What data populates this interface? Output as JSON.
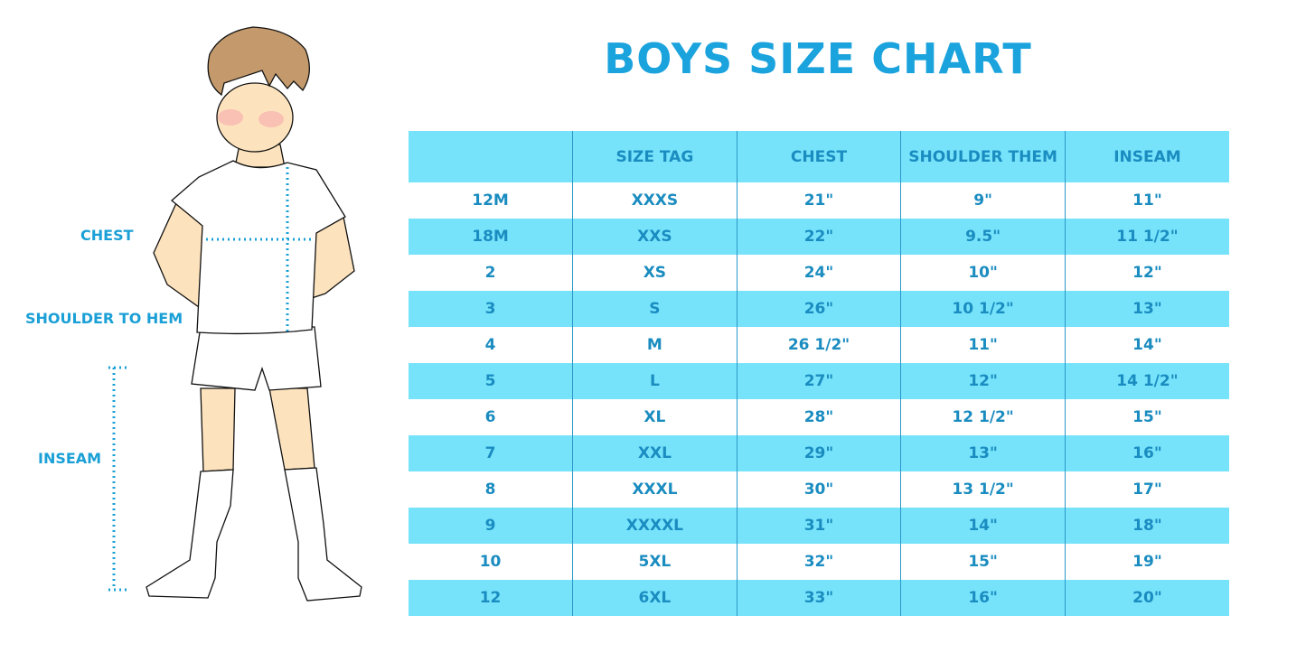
{
  "title": "BOYS SIZE CHART",
  "figure_labels": {
    "chest": "CHEST",
    "shoulder_to_hem": "SHOULDER TO HEM",
    "inseam": "INSEAM"
  },
  "colors": {
    "title": "#1ba3dd",
    "header_bg": "#76e3fb",
    "text": "#1a8cc0"
  },
  "table": {
    "headers": [
      "",
      "SIZE TAG",
      "CHEST",
      "SHOULDER THEM",
      "INSEAM"
    ],
    "rows": [
      [
        "12M",
        "XXXS",
        "21\"",
        "9\"",
        "11\""
      ],
      [
        "18M",
        "XXS",
        "22\"",
        "9.5\"",
        "11 1/2\""
      ],
      [
        "2",
        "XS",
        "24\"",
        "10\"",
        "12\""
      ],
      [
        "3",
        "S",
        "26\"",
        "10 1/2\"",
        "13\""
      ],
      [
        "4",
        "M",
        "26 1/2\"",
        "11\"",
        "14\""
      ],
      [
        "5",
        "L",
        "27\"",
        "12\"",
        "14 1/2\""
      ],
      [
        "6",
        "XL",
        "28\"",
        "12 1/2\"",
        "15\""
      ],
      [
        "7",
        "XXL",
        "29\"",
        "13\"",
        "16\""
      ],
      [
        "8",
        "XXXL",
        "30\"",
        "13 1/2\"",
        "17\""
      ],
      [
        "9",
        "XXXXL",
        "31\"",
        "14\"",
        "18\""
      ],
      [
        "10",
        "5XL",
        "32\"",
        "15\"",
        "19\""
      ],
      [
        "12",
        "6XL",
        "33\"",
        "16\"",
        "20\""
      ]
    ]
  }
}
